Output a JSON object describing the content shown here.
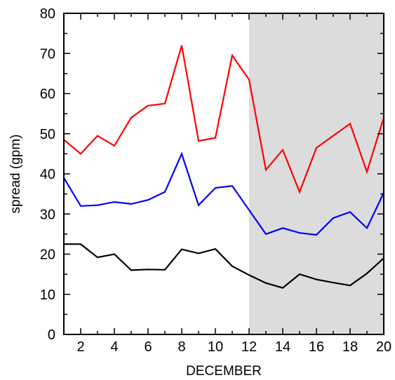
{
  "chart_data": {
    "type": "line",
    "xlabel": "DECEMBER",
    "ylabel": "spread (gpm)",
    "xlim": [
      1,
      20
    ],
    "ylim": [
      0,
      80
    ],
    "x_ticks": [
      2,
      4,
      6,
      8,
      10,
      12,
      14,
      16,
      18,
      20
    ],
    "y_ticks": [
      0,
      10,
      20,
      30,
      40,
      50,
      60,
      70,
      80
    ],
    "grid": false,
    "legend": "none",
    "shaded_region": {
      "x_start": 12,
      "x_end": 20,
      "color": "#dcdcdc"
    },
    "x": [
      1,
      2,
      3,
      4,
      5,
      6,
      7,
      8,
      9,
      10,
      11,
      12,
      13,
      14,
      15,
      16,
      17,
      18,
      19,
      20
    ],
    "series": [
      {
        "color": "#ff0000",
        "values": [
          48.5,
          45,
          49.5,
          47,
          54,
          57,
          57.5,
          72,
          48.2,
          49,
          69.5,
          63.5,
          41,
          46,
          35.5,
          46.5,
          49.5,
          52.5,
          40.5,
          54
        ]
      },
      {
        "color": "#0000ff",
        "values": [
          39,
          32,
          32.2,
          33,
          32.5,
          33.5,
          35.5,
          45,
          32.2,
          36.5,
          37,
          31,
          25,
          26.5,
          25.3,
          24.8,
          29,
          30.5,
          26.5,
          35.3
        ]
      },
      {
        "color": "#000000",
        "values": [
          22.5,
          22.5,
          19.2,
          20,
          16,
          16.2,
          16.1,
          21.2,
          20.2,
          21.3,
          17,
          14.8,
          12.8,
          11.6,
          15,
          13.7,
          12.9,
          12.2,
          15.2,
          19
        ]
      }
    ]
  }
}
